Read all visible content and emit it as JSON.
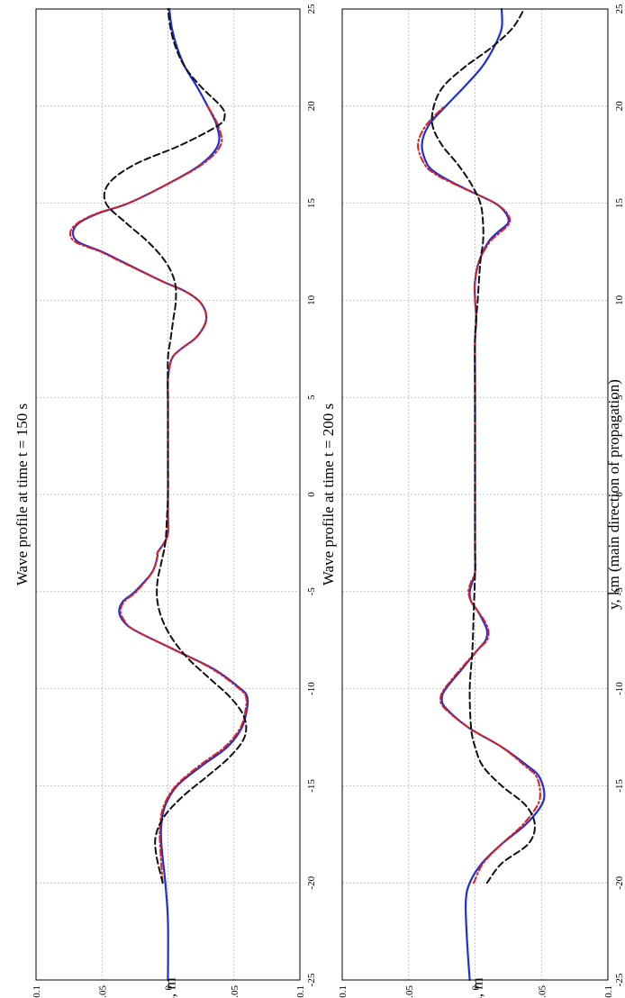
{
  "chart_data": [
    {
      "type": "line",
      "title": "Wave profile at time t = 150 s",
      "xlabel": "y, km (main direction of propagation)",
      "ylabel": "z, m",
      "xlim": [
        -25,
        25
      ],
      "ylim": [
        -0.1,
        0.1
      ],
      "xticks": [
        "-25",
        "-20",
        "-15",
        "-10",
        "-5",
        "0",
        "5",
        "10",
        "15",
        "20",
        "25"
      ],
      "yticks": [
        "-0.1",
        "-0.05",
        "0",
        "0.05",
        "0.1"
      ],
      "grid": true,
      "series": [
        {
          "color": "#1f2fd8",
          "dash": "solid",
          "x": [
            -25,
            -22,
            -20,
            -18,
            -17,
            -16,
            -15,
            -14,
            -13,
            -12,
            -11,
            -10.4,
            -10,
            -9,
            -8,
            -7,
            -6.5,
            -6,
            -5.5,
            -5,
            -4,
            -3.2,
            -3,
            -2.5,
            -2,
            -1,
            0,
            2,
            4,
            5,
            6,
            7,
            7.5,
            8,
            8.5,
            9,
            9.5,
            10,
            10.5,
            11,
            12,
            12.5,
            13,
            13.5,
            14,
            14.5,
            15,
            16,
            17,
            18,
            19,
            20,
            21,
            22,
            23,
            24,
            25
          ],
          "y": [
            0,
            0,
            0.002,
            0.005,
            0.005,
            0.002,
            -0.007,
            -0.025,
            -0.045,
            -0.056,
            -0.06,
            -0.06,
            -0.055,
            -0.035,
            -0.005,
            0.025,
            0.034,
            0.037,
            0.034,
            0.025,
            0.012,
            0.008,
            0.008,
            0.003,
            0,
            0,
            0,
            0,
            0,
            0,
            0,
            -0.003,
            -0.01,
            -0.02,
            -0.026,
            -0.029,
            -0.028,
            -0.023,
            -0.012,
            0.005,
            0.035,
            0.05,
            0.068,
            0.072,
            0.067,
            0.052,
            0.03,
            0,
            -0.025,
            -0.038,
            -0.037,
            -0.03,
            -0.022,
            -0.013,
            -0.007,
            -0.003,
            -0.001
          ]
        },
        {
          "color": "#e02020",
          "dash": "dashdot",
          "x": [
            -20,
            -18,
            -17,
            -16,
            -15,
            -14,
            -13,
            -12,
            -11,
            -10.4,
            -10,
            -9,
            -8,
            -7,
            -6.5,
            -6,
            -5.5,
            -5,
            -4,
            -3.2,
            -3,
            -2.5,
            -2,
            -1,
            0,
            2,
            4,
            5,
            6,
            7,
            7.5,
            8,
            8.5,
            9,
            9.5,
            10,
            10.5,
            11,
            12,
            12.5,
            13,
            13.5,
            14,
            14.5,
            15,
            16,
            17,
            18,
            19,
            20
          ],
          "y": [
            0.004,
            0.006,
            0.006,
            0.003,
            -0.006,
            -0.023,
            -0.043,
            -0.055,
            -0.059,
            -0.059,
            -0.054,
            -0.034,
            -0.005,
            0.025,
            0.033,
            0.036,
            0.033,
            0.024,
            0.012,
            0.008,
            0.008,
            0.003,
            0,
            0,
            0,
            0,
            0,
            0,
            0,
            -0.003,
            -0.01,
            -0.02,
            -0.026,
            -0.029,
            -0.028,
            -0.023,
            -0.012,
            0.005,
            0.036,
            0.051,
            0.07,
            0.074,
            0.068,
            0.053,
            0.03,
            0,
            -0.026,
            -0.04,
            -0.038,
            -0.03
          ]
        },
        {
          "color": "#111111",
          "dash": "dashed",
          "x": [
            -20,
            -18.5,
            -17.5,
            -16.5,
            -15.5,
            -14.5,
            -13.5,
            -12.5,
            -11.5,
            -10.5,
            -9.5,
            -8.5,
            -7.5,
            -6.5,
            -5.5,
            -4.5,
            -3.5,
            -2.5,
            -1.5,
            0,
            2,
            5,
            7,
            8,
            9,
            10,
            11,
            12,
            13,
            14,
            15,
            16,
            17,
            18,
            19,
            19.5,
            20,
            21,
            22,
            23,
            24,
            25
          ],
          "y": [
            0.004,
            0.009,
            0.009,
            0.002,
            -0.012,
            -0.03,
            -0.047,
            -0.058,
            -0.058,
            -0.048,
            -0.032,
            -0.016,
            -0.004,
            0.004,
            0.008,
            0.008,
            0.005,
            0.002,
            0.001,
            0,
            0,
            0,
            0,
            -0.002,
            -0.004,
            -0.006,
            -0.005,
            0.002,
            0.015,
            0.032,
            0.047,
            0.045,
            0.025,
            -0.01,
            -0.038,
            -0.043,
            -0.04,
            -0.025,
            -0.013,
            -0.006,
            -0.002,
            0
          ]
        }
      ]
    },
    {
      "type": "line",
      "title": "Wave profile at time t = 200 s",
      "xlabel": "y, km (main direction of propagation)",
      "ylabel": "z, m",
      "xlim": [
        -25,
        25
      ],
      "ylim": [
        -0.1,
        0.1
      ],
      "xticks": [
        "-25",
        "-20",
        "-15",
        "-10",
        "-5",
        "0",
        "5",
        "10",
        "15",
        "20",
        "25"
      ],
      "yticks": [
        "-0.1",
        "-0.05",
        "0",
        "0.05",
        "0.1"
      ],
      "grid": true,
      "series": [
        {
          "color": "#1f2fd8",
          "dash": "solid",
          "x": [
            -25,
            -23,
            -21,
            -20,
            -19,
            -18,
            -17,
            -16,
            -15.3,
            -14.5,
            -14,
            -13,
            -12,
            -11,
            -10.5,
            -10,
            -9,
            -8,
            -7.5,
            -7,
            -6.5,
            -6,
            -5.5,
            -5,
            -4.5,
            -4,
            -3,
            -2,
            0,
            2,
            4,
            6,
            8,
            9,
            10,
            11,
            12,
            13,
            13.5,
            14,
            14.5,
            15,
            15.5,
            16,
            16.5,
            17,
            18,
            19,
            20,
            21,
            22,
            23,
            24,
            25
          ],
          "y": [
            0.004,
            0.006,
            0.007,
            0.004,
            -0.005,
            -0.02,
            -0.038,
            -0.05,
            -0.052,
            -0.048,
            -0.04,
            -0.02,
            0.005,
            0.022,
            0.025,
            0.022,
            0.01,
            -0.002,
            -0.008,
            -0.009,
            -0.006,
            -0.002,
            0.003,
            0.004,
            0.002,
            0,
            0,
            0,
            0,
            0,
            0,
            0,
            0,
            -0.001,
            0,
            0,
            -0.003,
            -0.01,
            -0.017,
            -0.025,
            -0.023,
            -0.015,
            0,
            0.015,
            0.028,
            0.036,
            0.04,
            0.035,
            0.022,
            0.008,
            -0.005,
            -0.014,
            -0.02,
            -0.02
          ]
        },
        {
          "color": "#e02020",
          "dash": "dashdot",
          "x": [
            -20,
            -19,
            -18,
            -17,
            -16,
            -15.3,
            -14.5,
            -14,
            -13,
            -12,
            -11,
            -10.5,
            -10,
            -9,
            -8,
            -7.5,
            -7,
            -6.5,
            -6,
            -5.5,
            -5,
            -4.5,
            -4,
            -3,
            -2,
            0,
            2,
            4,
            6,
            8,
            9,
            10,
            11,
            12,
            13,
            13.5,
            14,
            14.5,
            15,
            15.5,
            16,
            16.5,
            17,
            18,
            19,
            20
          ],
          "y": [
            0.001,
            -0.006,
            -0.02,
            -0.036,
            -0.047,
            -0.049,
            -0.046,
            -0.038,
            -0.02,
            0.005,
            0.023,
            0.026,
            0.023,
            0.011,
            -0.002,
            -0.009,
            -0.01,
            -0.007,
            -0.002,
            0.003,
            0.005,
            0.003,
            0,
            0,
            0,
            0,
            0,
            0,
            0,
            0,
            -0.001,
            0,
            0,
            -0.003,
            -0.011,
            -0.019,
            -0.026,
            -0.024,
            -0.015,
            0,
            0.016,
            0.03,
            0.038,
            0.043,
            0.037,
            0.023
          ]
        },
        {
          "color": "#111111",
          "dash": "dashed",
          "x": [
            -20,
            -19,
            -18,
            -17,
            -16,
            -15,
            -14,
            -13,
            -12,
            -10,
            -8,
            -6,
            -4,
            -2,
            0,
            4,
            8,
            10,
            12,
            13,
            14,
            15,
            16,
            17,
            18,
            19,
            20,
            21,
            22,
            23,
            24,
            25
          ],
          "y": [
            -0.009,
            -0.02,
            -0.04,
            -0.045,
            -0.038,
            -0.02,
            -0.006,
            0,
            0.003,
            0.004,
            0.002,
            0.001,
            0,
            0,
            0,
            0,
            0,
            -0.002,
            -0.004,
            -0.006,
            -0.006,
            -0.004,
            0.003,
            0.013,
            0.025,
            0.032,
            0.031,
            0.024,
            0.008,
            -0.012,
            -0.028,
            -0.037
          ]
        }
      ]
    }
  ]
}
